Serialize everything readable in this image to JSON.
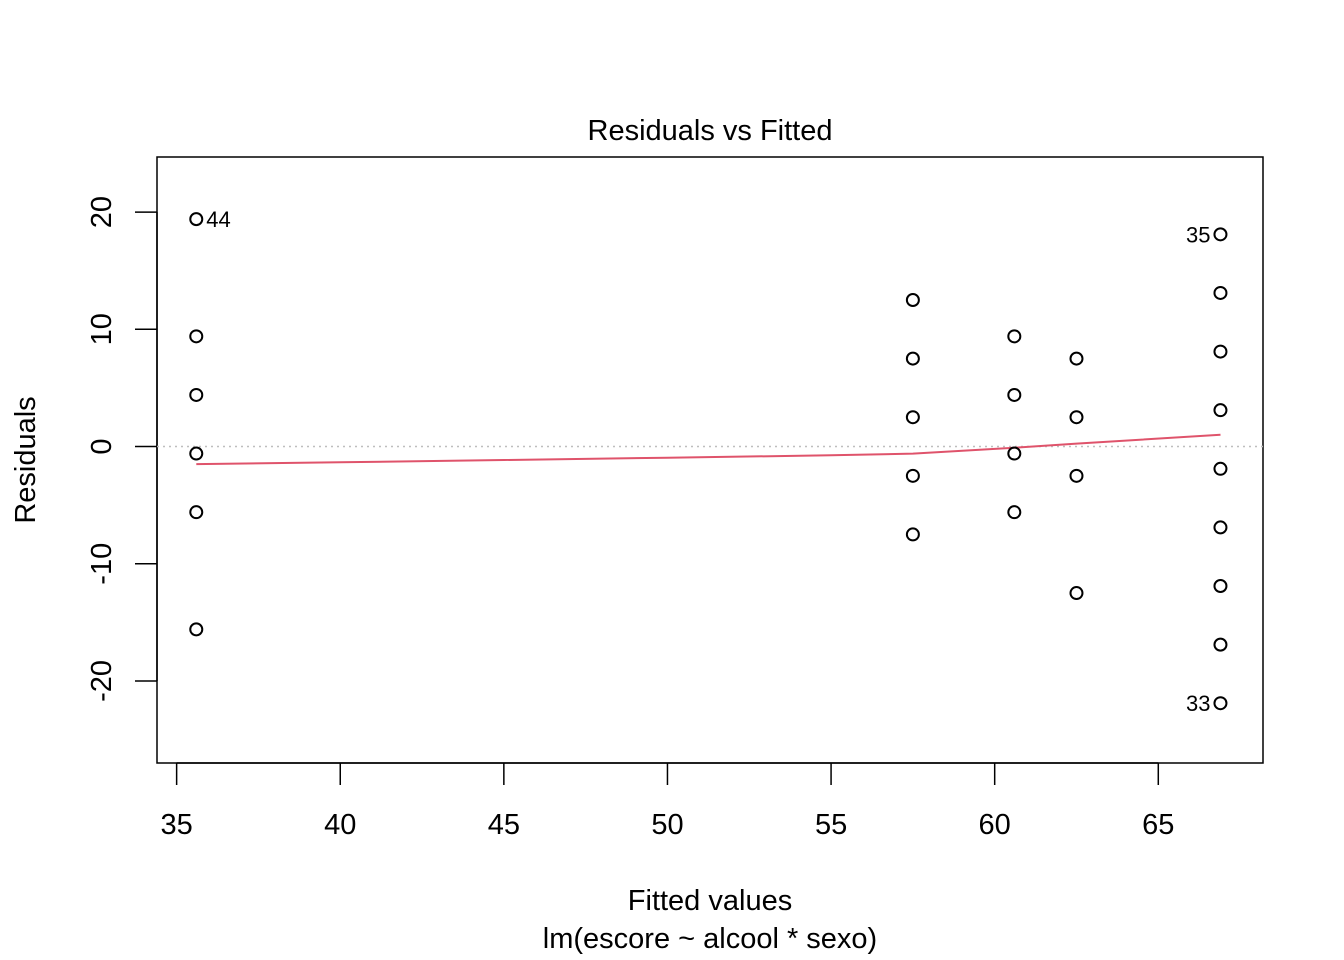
{
  "chart_data": {
    "type": "scatter",
    "title": "Residuals vs Fitted",
    "xlabel": "Fitted values",
    "subtitle": "lm(escore ~ alcool * sexo)",
    "ylabel": "Residuals",
    "xlim": [
      34.4,
      68.2
    ],
    "ylim": [
      -27.0,
      24.7
    ],
    "xticks": [
      35,
      40,
      45,
      50,
      55,
      60,
      65
    ],
    "yticks": [
      -20,
      -10,
      0,
      10,
      20
    ],
    "reference_line": 0,
    "grid": false,
    "colors": {
      "points": "#000000",
      "smooth": "#DF536B",
      "reference": "#bebebe"
    },
    "points": [
      {
        "x": 35.6,
        "y": 19.4,
        "label": "44"
      },
      {
        "x": 35.6,
        "y": 9.4
      },
      {
        "x": 35.6,
        "y": 4.4
      },
      {
        "x": 35.6,
        "y": -0.6
      },
      {
        "x": 35.6,
        "y": -5.6
      },
      {
        "x": 35.6,
        "y": -15.6
      },
      {
        "x": 57.5,
        "y": 12.5
      },
      {
        "x": 57.5,
        "y": 7.5
      },
      {
        "x": 57.5,
        "y": 2.5
      },
      {
        "x": 57.5,
        "y": -2.5
      },
      {
        "x": 57.5,
        "y": -7.5
      },
      {
        "x": 60.6,
        "y": 9.4
      },
      {
        "x": 60.6,
        "y": 4.4
      },
      {
        "x": 60.6,
        "y": -0.6
      },
      {
        "x": 60.6,
        "y": -5.6
      },
      {
        "x": 62.5,
        "y": 7.5
      },
      {
        "x": 62.5,
        "y": 2.5
      },
      {
        "x": 62.5,
        "y": -2.5
      },
      {
        "x": 62.5,
        "y": -12.5
      },
      {
        "x": 66.9,
        "y": 18.1,
        "label": "35"
      },
      {
        "x": 66.9,
        "y": 13.1
      },
      {
        "x": 66.9,
        "y": 8.1
      },
      {
        "x": 66.9,
        "y": 3.1
      },
      {
        "x": 66.9,
        "y": -1.9
      },
      {
        "x": 66.9,
        "y": -6.9
      },
      {
        "x": 66.9,
        "y": -11.9
      },
      {
        "x": 66.9,
        "y": -16.9
      },
      {
        "x": 66.9,
        "y": -21.9,
        "label": "33"
      }
    ],
    "smooth": [
      {
        "x": 35.6,
        "y": -1.5
      },
      {
        "x": 40.0,
        "y": -1.35
      },
      {
        "x": 45.0,
        "y": -1.15
      },
      {
        "x": 50.0,
        "y": -0.95
      },
      {
        "x": 55.0,
        "y": -0.75
      },
      {
        "x": 57.5,
        "y": -0.6
      },
      {
        "x": 60.6,
        "y": -0.1
      },
      {
        "x": 62.5,
        "y": 0.25
      },
      {
        "x": 66.9,
        "y": 1.0
      }
    ]
  }
}
